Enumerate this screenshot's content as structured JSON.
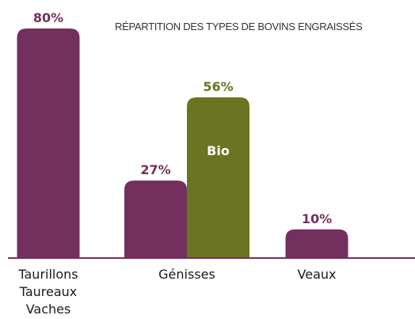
{
  "chart_data": {
    "type": "bar",
    "title": "RÉPARTITION DES TYPES DE BOVINS ENGRAISSÉS",
    "categories": [
      "Taurillons\nTaureaux\nVaches",
      "Génisses",
      "Veaux"
    ],
    "series": [
      {
        "color": "#73305f",
        "values": [
          80,
          27,
          10
        ],
        "value_labels": [
          "80%",
          "27%",
          "10%"
        ]
      },
      {
        "name": "Bio",
        "color": "#6b7420",
        "values": [
          null,
          56,
          null
        ],
        "value_labels": [
          null,
          "56%",
          null
        ]
      }
    ],
    "ylim": [
      0,
      80
    ]
  }
}
